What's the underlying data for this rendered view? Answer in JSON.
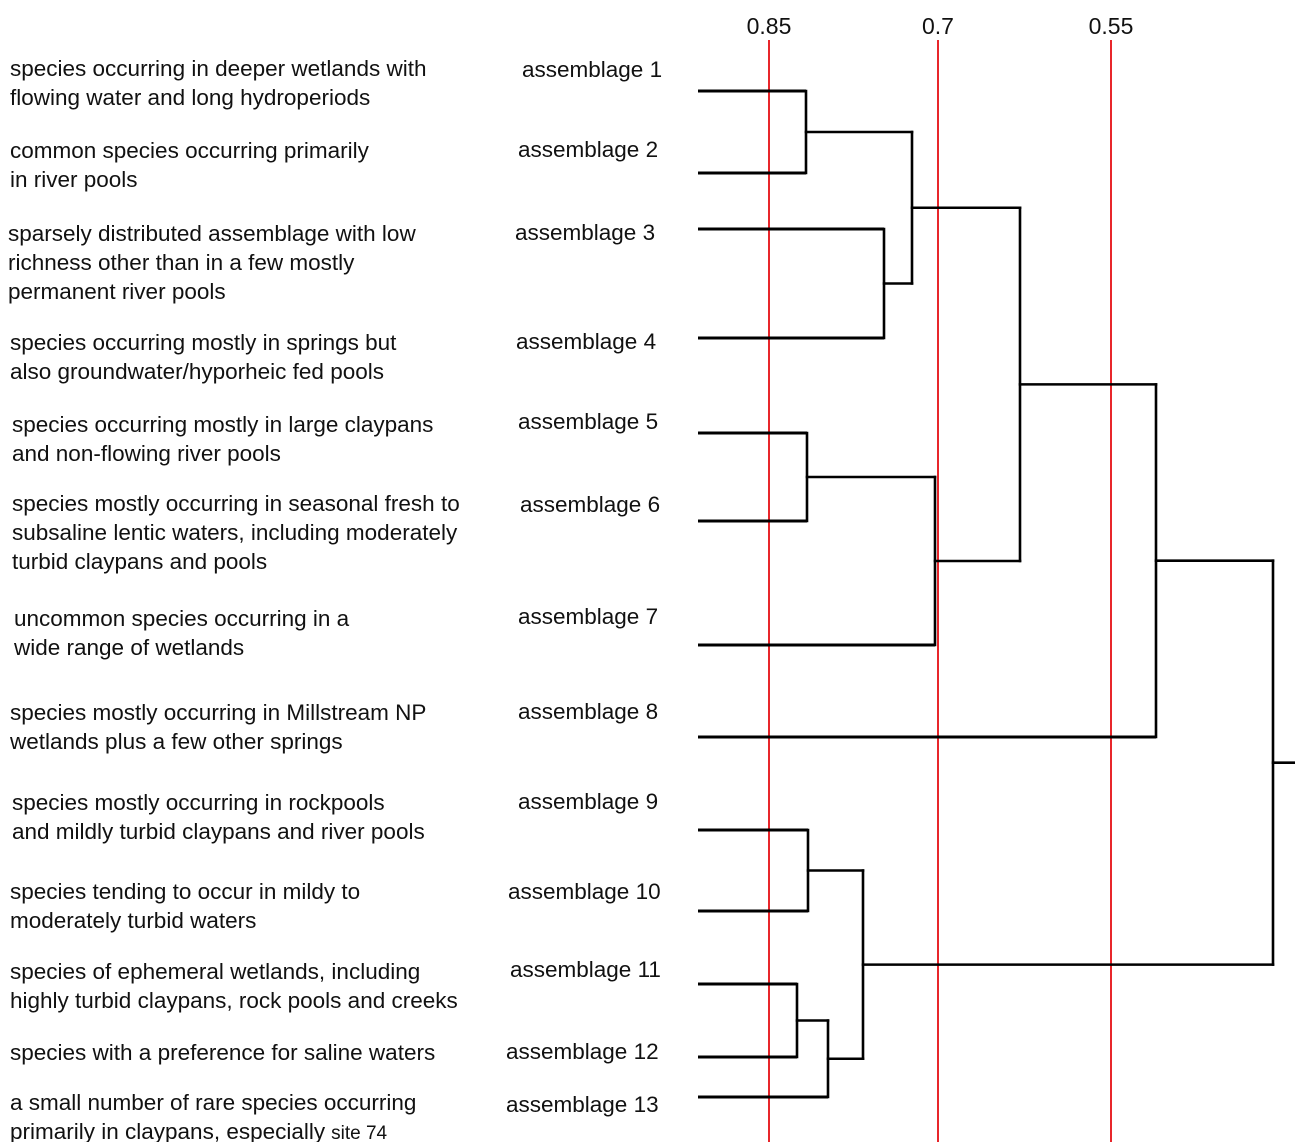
{
  "scale": {
    "ticks": [
      {
        "label": "0.85",
        "value": 0.85
      },
      {
        "label": "0.7",
        "value": 0.7
      },
      {
        "label": "0.55",
        "value": 0.55
      }
    ],
    "cutoff_color": "#e8262b"
  },
  "assemblages": [
    {
      "label": "assemblage 1",
      "description": [
        "species occurring in deeper wetlands with",
        "flowing water and long hydroperiods"
      ]
    },
    {
      "label": "assemblage 2",
      "description": [
        "common species occurring primarily",
        "in river pools"
      ]
    },
    {
      "label": "assemblage 3",
      "description": [
        "sparsely distributed assemblage with low",
        "richness other than in a few mostly",
        "permanent river pools"
      ]
    },
    {
      "label": "assemblage 4",
      "description": [
        "species occurring mostly in springs but",
        "also groundwater/hyporheic fed pools"
      ]
    },
    {
      "label": "assemblage 5",
      "description": [
        "species occurring mostly in large claypans",
        "and non-flowing river pools"
      ]
    },
    {
      "label": "assemblage 6",
      "description": [
        "species mostly occurring in seasonal fresh to",
        "subsaline lentic waters, including moderately",
        "turbid claypans and pools"
      ]
    },
    {
      "label": "assemblage 7",
      "description": [
        "uncommon species occurring in a",
        "wide range of wetlands"
      ]
    },
    {
      "label": "assemblage 8",
      "description": [
        "species mostly occurring in Millstream NP",
        "wetlands plus a few other springs"
      ]
    },
    {
      "label": "assemblage 9",
      "description": [
        "species mostly occurring in rockpools",
        "and mildly turbid claypans and river pools"
      ]
    },
    {
      "label": "assemblage 10",
      "description": [
        "species tending to occur in mildy to",
        "moderately turbid waters"
      ]
    },
    {
      "label": "assemblage 11",
      "description": [
        "species of ephemeral wetlands, including",
        "highly turbid claypans, rock pools and creeks"
      ]
    },
    {
      "label": "assemblage 12",
      "description": [
        "species with a preference for saline waters"
      ]
    },
    {
      "label": "assemblage 13",
      "description": [
        "a small number of rare species occurring",
        "primarily in claypans, especially"
      ],
      "description_suffix": "site 74"
    }
  ]
}
